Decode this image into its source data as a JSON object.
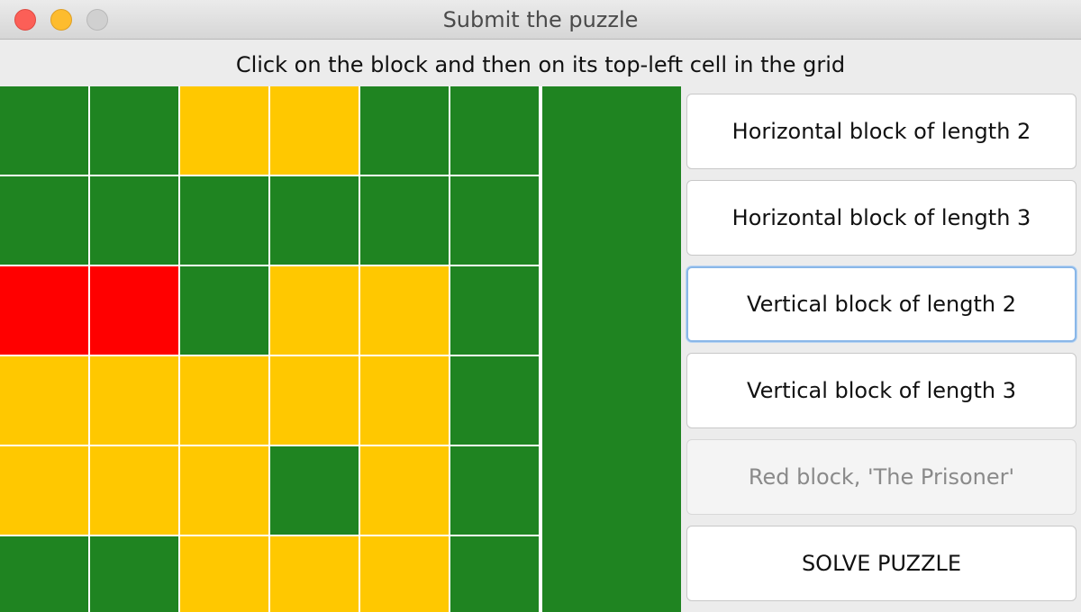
{
  "window": {
    "title": "Submit the puzzle"
  },
  "instruction": "Click on the block and then on its top-left cell in the grid",
  "colors": {
    "green": "#1f8421",
    "yellow": "#ffc800",
    "red": "#ff0000",
    "grid_line": "#ffffff"
  },
  "grid": {
    "rows": [
      [
        "green",
        "green",
        "yellow",
        "yellow",
        "green",
        "green"
      ],
      [
        "green",
        "green",
        "green",
        "green",
        "green",
        "green"
      ],
      [
        "red",
        "red",
        "green",
        "yellow",
        "yellow",
        "green"
      ],
      [
        "yellow",
        "yellow",
        "yellow",
        "yellow",
        "yellow",
        "green"
      ],
      [
        "yellow",
        "yellow",
        "yellow",
        "green",
        "yellow",
        "green"
      ],
      [
        "green",
        "green",
        "yellow",
        "yellow",
        "yellow",
        "green"
      ]
    ]
  },
  "panel": {
    "horizontal_2": "Horizontal block of length 2",
    "horizontal_3": "Horizontal block of length 3",
    "vertical_2": "Vertical block of length 2",
    "vertical_3": "Vertical block of length 3",
    "red_block": "Red block, 'The Prisoner'",
    "solve": "SOLVE PUZZLE"
  }
}
